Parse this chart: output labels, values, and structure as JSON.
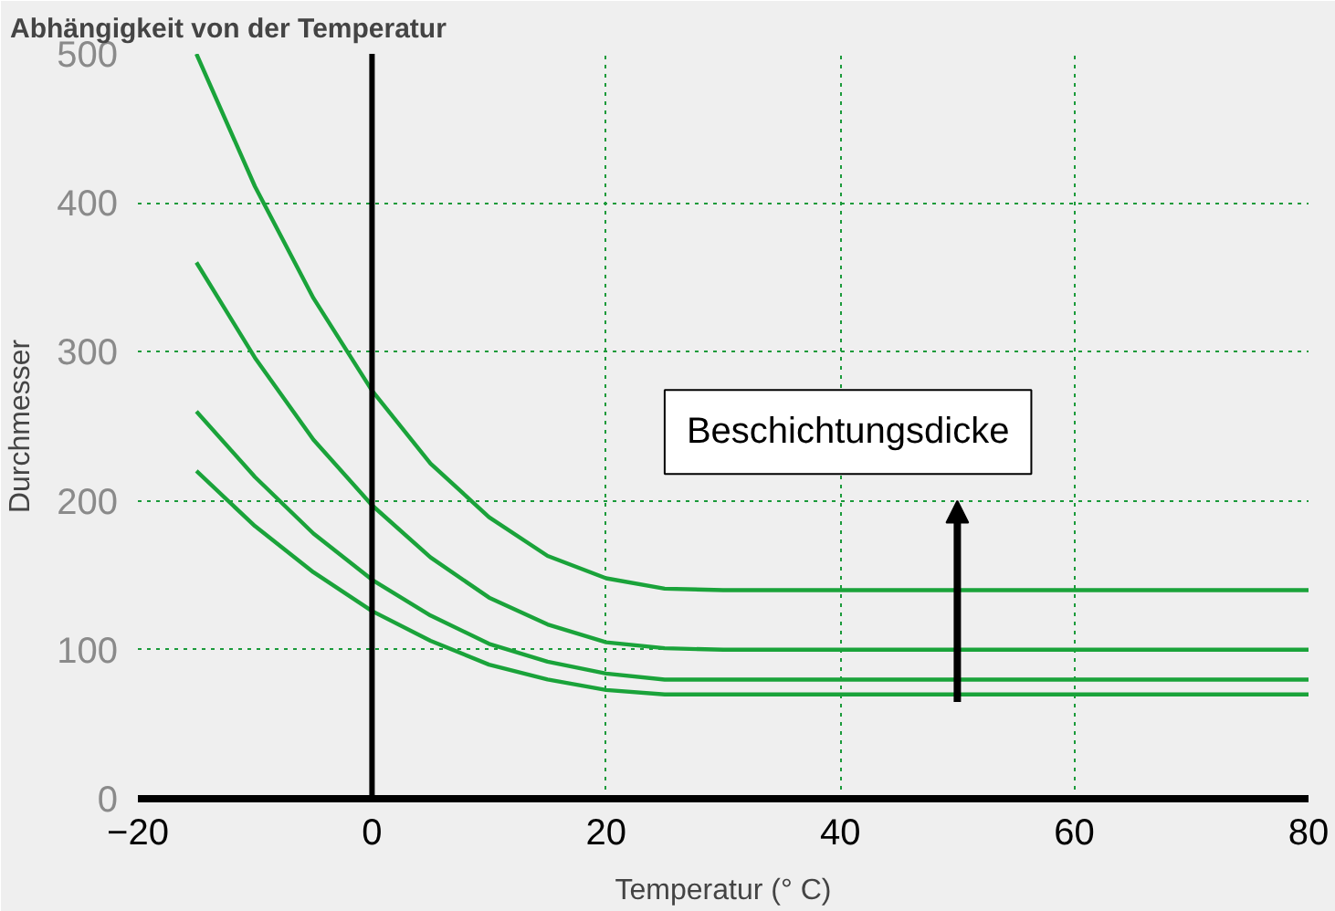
{
  "chart_data": {
    "type": "line",
    "title": "Abhängigkeit von der Temperatur",
    "xlabel": "Temperatur (° C)",
    "ylabel": "Durchmesser",
    "x": [
      -15,
      -10,
      -5,
      0,
      5,
      10,
      15,
      20,
      25,
      30,
      80
    ],
    "series": [
      {
        "color": "#1aa33a",
        "values": [
          500,
          411,
          336,
          274,
          225,
          189,
          163,
          148,
          141,
          140,
          140
        ]
      },
      {
        "color": "#1aa33a",
        "values": [
          360,
          296,
          241,
          197,
          162,
          135,
          117,
          105,
          101,
          100,
          100
        ]
      },
      {
        "color": "#1aa33a",
        "values": [
          260,
          216,
          178,
          147,
          123,
          104,
          92,
          84,
          80,
          80,
          80
        ]
      },
      {
        "color": "#1aa33a",
        "values": [
          220,
          183,
          152,
          126,
          106,
          90,
          80,
          73,
          70,
          70,
          70
        ]
      }
    ],
    "xlim": [
      -20,
      80
    ],
    "xticks": [
      -20,
      0,
      20,
      40,
      60,
      80
    ],
    "ylim": [
      0,
      500
    ],
    "yticks": [
      0,
      100,
      200,
      300,
      400,
      500
    ],
    "ref_lines": [
      {
        "axis": "x",
        "value": 0,
        "color": "#000000"
      }
    ],
    "annotations": [
      "Beschichtungsdicke"
    ],
    "grid": true,
    "marker": "none",
    "line_style": "solid"
  }
}
